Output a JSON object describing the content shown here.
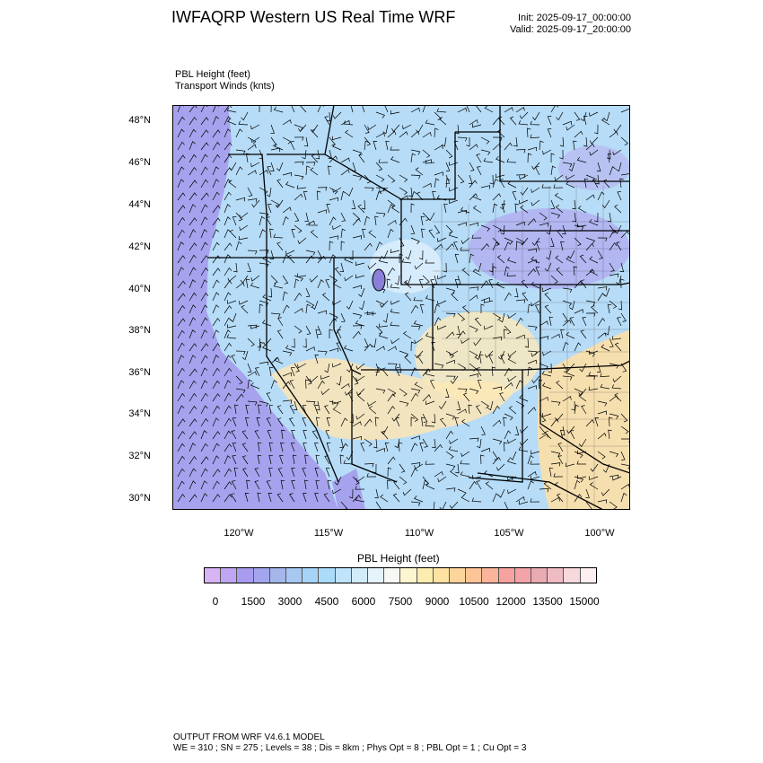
{
  "header": {
    "title": "IWFAQRP Western US Real Time WRF",
    "init": "Init: 2025-09-17_00:00:00",
    "valid": "Valid: 2025-09-17_20:00:00"
  },
  "fields": {
    "field1": "PBL Height   (feet)",
    "field2": "Transport Winds   (knts)"
  },
  "map": {
    "lat_labels": [
      "48°N",
      "46°N",
      "44°N",
      "42°N",
      "40°N",
      "38°N",
      "36°N",
      "34°N",
      "32°N",
      "30°N"
    ],
    "lon_labels": [
      "120°W",
      "115°W",
      "110°W",
      "105°W",
      "100°W"
    ]
  },
  "colorbar": {
    "title": "PBL Height  (feet)",
    "labels": [
      "0",
      "1500",
      "3000",
      "4500",
      "6000",
      "7500",
      "9000",
      "10500",
      "12000",
      "13500",
      "15000"
    ],
    "colors": [
      "#d7b4f5",
      "#c0a6f2",
      "#a99bef",
      "#a3a6ec",
      "#a4b6ea",
      "#a7c8f0",
      "#a6d4f6",
      "#aadcf9",
      "#bfe4fb",
      "#d3ecfb",
      "#e5f3fb",
      "#f6f8f3",
      "#fdf5cf",
      "#fdecb0",
      "#fde2a2",
      "#fcd59c",
      "#fbc597",
      "#f9b49a",
      "#f6a3a0",
      "#f4a4a8",
      "#e9aab2",
      "#f0bcc4",
      "#f7d8dc",
      "#fdeef0"
    ]
  },
  "footer": {
    "line1": "OUTPUT FROM WRF V4.6.1 MODEL",
    "line2": "WE = 310 ; SN = 275 ; Levels = 38 ; Dis = 8km ; Phys Opt = 8 ; PBL Opt = 1 ; Cu Opt = 3"
  }
}
